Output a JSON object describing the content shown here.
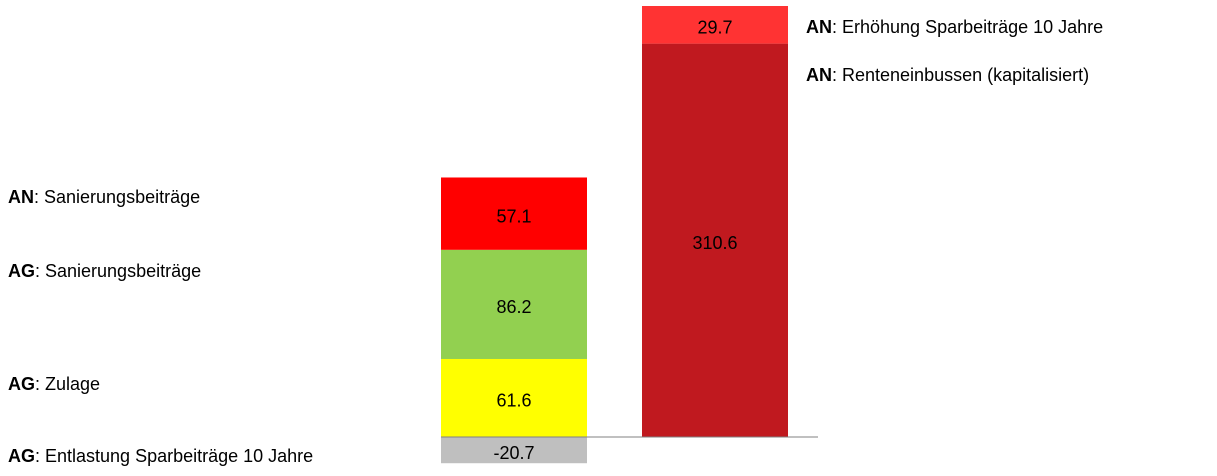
{
  "chart_data": {
    "type": "stacked-bar",
    "categories": [
      null,
      null
    ],
    "series": [
      {
        "name": "AG: Entlastung Sparbeiträge 10 Jahre",
        "color": "#bfbfbf",
        "values": [
          -20.7,
          null
        ]
      },
      {
        "name": "AG: Zulage",
        "color": "#ffff00",
        "values": [
          61.6,
          null
        ]
      },
      {
        "name": "AG: Sanierungsbeiträge",
        "color": "#92d050",
        "values": [
          86.2,
          null
        ]
      },
      {
        "name": "AN: Sanierungsbeiträge",
        "color": "#ff0000",
        "values": [
          57.1,
          null
        ]
      },
      {
        "name": "AN: Renteneinbussen (kapitalisiert)",
        "color": "#c0191f",
        "values": [
          null,
          310.6
        ]
      },
      {
        "name": "AN: Erhöhung Sparbeiträge 10 Jahre",
        "color": "#ff3333",
        "values": [
          null,
          29.7
        ]
      }
    ]
  }
}
